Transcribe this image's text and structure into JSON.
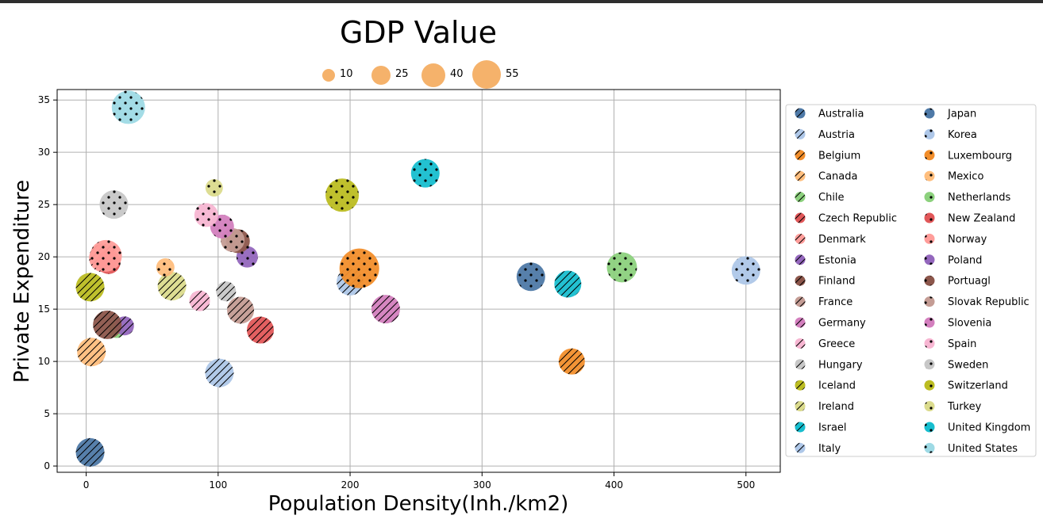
{
  "chart_data": {
    "type": "scatter",
    "title": "GDP Value",
    "xlabel": "Population Density(Inh./km2)",
    "ylabel": "Private Expenditure",
    "xlim": [
      -22,
      526
    ],
    "ylim": [
      -0.6,
      36.0
    ],
    "xticks": [
      0,
      100,
      200,
      300,
      400,
      500
    ],
    "yticks": [
      0,
      5,
      10,
      15,
      20,
      25,
      30,
      35
    ],
    "grid": true,
    "size_legend": {
      "position": "top-center",
      "labels": [
        "10",
        "25",
        "40",
        "55"
      ],
      "values": [
        10,
        25,
        40,
        55
      ],
      "color": "#f5b26b"
    },
    "legend_position": "right",
    "series": [
      {
        "name": "Australia",
        "color": "#4e79a7",
        "hatch": "diag",
        "x": 3,
        "y": 1.3,
        "size": 36
      },
      {
        "name": "Austria",
        "color": "#aec7e8",
        "hatch": "diag",
        "x": 101,
        "y": 8.9,
        "size": 36
      },
      {
        "name": "Belgium",
        "color": "#f28e2b",
        "hatch": "diag",
        "x": 368,
        "y": 10.0,
        "size": 33
      },
      {
        "name": "Canada",
        "color": "#ffbe7d",
        "hatch": "diag",
        "x": 4,
        "y": 10.9,
        "size": 36
      },
      {
        "name": "Chile",
        "color": "#8cd17d",
        "hatch": "diag",
        "x": 23,
        "y": 13.0,
        "size": 20
      },
      {
        "name": "Czech Republic",
        "color": "#e15759",
        "hatch": "diag",
        "x": 132,
        "y": 13.0,
        "size": 34
      },
      {
        "name": "Denmark",
        "color": "#ff9d9a",
        "hatch": "diag",
        "x": 13,
        "y": 19.9,
        "size": 36
      },
      {
        "name": "Estonia",
        "color": "#9467bd",
        "hatch": "diag",
        "x": 29,
        "y": 13.4,
        "size": 24
      },
      {
        "name": "Finland",
        "color": "#8c564b",
        "hatch": "diag",
        "x": 16,
        "y": 13.5,
        "size": 36
      },
      {
        "name": "France",
        "color": "#c49c94",
        "hatch": "diag",
        "x": 117,
        "y": 14.9,
        "size": 34
      },
      {
        "name": "Germany",
        "color": "#d37fbe",
        "hatch": "diag",
        "x": 227,
        "y": 15.0,
        "size": 36
      },
      {
        "name": "Greece",
        "color": "#f7b6d2",
        "hatch": "diag",
        "x": 86,
        "y": 15.8,
        "size": 26
      },
      {
        "name": "Hungary",
        "color": "#c7c7c7",
        "hatch": "diag",
        "x": 106,
        "y": 16.7,
        "size": 25
      },
      {
        "name": "Iceland",
        "color": "#bcbd22",
        "hatch": "diag",
        "x": 3,
        "y": 17.1,
        "size": 36
      },
      {
        "name": "Ireland",
        "color": "#dbdb8d",
        "hatch": "diag",
        "x": 65,
        "y": 17.2,
        "size": 36
      },
      {
        "name": "Israel",
        "color": "#17becf",
        "hatch": "diag",
        "x": 365,
        "y": 17.4,
        "size": 34
      },
      {
        "name": "Italy",
        "color": "#aec7e8",
        "hatch": "diag",
        "x": 200,
        "y": 17.6,
        "size": 34
      },
      {
        "name": "Japan",
        "color": "#4e79a7",
        "hatch": "dots",
        "x": 337,
        "y": 18.1,
        "size": 36
      },
      {
        "name": "Korea",
        "color": "#aec7e8",
        "hatch": "dots",
        "x": 500,
        "y": 18.7,
        "size": 36
      },
      {
        "name": "Luxembourg",
        "color": "#f28e2b",
        "hatch": "dots",
        "x": 207,
        "y": 18.9,
        "size": 50
      },
      {
        "name": "Mexico",
        "color": "#ffbe7d",
        "hatch": "dots",
        "x": 60,
        "y": 19.0,
        "size": 23
      },
      {
        "name": "Netherlands",
        "color": "#8cd17d",
        "hatch": "dots",
        "x": 406,
        "y": 19.0,
        "size": 38
      },
      {
        "name": "New Zealand",
        "color": "#e15759",
        "hatch": "dots",
        "x": 17,
        "y": 19.5,
        "size": 30
      },
      {
        "name": "Norway",
        "color": "#ff9d9a",
        "hatch": "dots",
        "x": 15,
        "y": 20.1,
        "size": 40
      },
      {
        "name": "Poland",
        "color": "#9467bd",
        "hatch": "dots",
        "x": 122,
        "y": 20.0,
        "size": 27
      },
      {
        "name": "Portuagl",
        "color": "#8c564b",
        "hatch": "dots",
        "x": 115,
        "y": 21.5,
        "size": 30
      },
      {
        "name": "Slovak Republic",
        "color": "#c49c94",
        "hatch": "dots",
        "x": 111,
        "y": 21.6,
        "size": 30
      },
      {
        "name": "Slovenia",
        "color": "#d37fbe",
        "hatch": "dots",
        "x": 103,
        "y": 22.9,
        "size": 30
      },
      {
        "name": "Spain",
        "color": "#f7b6d2",
        "hatch": "dots",
        "x": 91,
        "y": 24.0,
        "size": 30
      },
      {
        "name": "Sweden",
        "color": "#c7c7c7",
        "hatch": "dots",
        "x": 21,
        "y": 25.0,
        "size": 36
      },
      {
        "name": "Switzerland",
        "color": "#bcbd22",
        "hatch": "dots",
        "x": 194,
        "y": 25.9,
        "size": 42
      },
      {
        "name": "Turkey",
        "color": "#dbdb8d",
        "hatch": "dots",
        "x": 97,
        "y": 26.6,
        "size": 22
      },
      {
        "name": "United Kingdom",
        "color": "#17becf",
        "hatch": "dots",
        "x": 257,
        "y": 28.0,
        "size": 36
      },
      {
        "name": "United States",
        "color": "#9edae5",
        "hatch": "dots",
        "x": 32,
        "y": 34.3,
        "size": 42
      }
    ]
  }
}
